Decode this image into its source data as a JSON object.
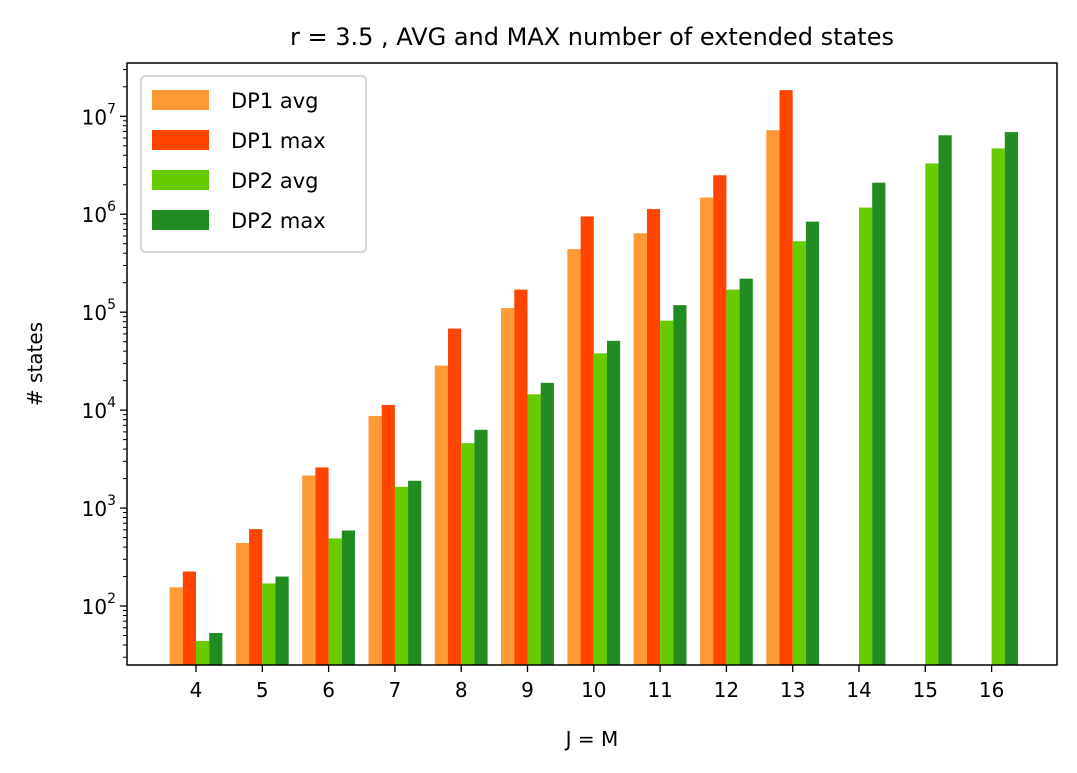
{
  "chart_data": {
    "type": "bar",
    "title": "r = 3.5 , AVG and MAX number of extended states",
    "xlabel": "J = M",
    "ylabel": "# states",
    "yscale": "log",
    "ylim": [
      25,
      35000000
    ],
    "categories": [
      "4",
      "5",
      "6",
      "7",
      "8",
      "9",
      "10",
      "11",
      "12",
      "13",
      "14",
      "15",
      "16"
    ],
    "y_ticks": [
      {
        "base": "10",
        "exp": "2",
        "value": 100
      },
      {
        "base": "10",
        "exp": "3",
        "value": 1000
      },
      {
        "base": "10",
        "exp": "4",
        "value": 10000
      },
      {
        "base": "10",
        "exp": "5",
        "value": 100000
      },
      {
        "base": "10",
        "exp": "6",
        "value": 1000000
      },
      {
        "base": "10",
        "exp": "7",
        "value": 10000000
      }
    ],
    "series": [
      {
        "name": "DP1 avg",
        "color": "#ff9933",
        "values": [
          155,
          440,
          2150,
          8700,
          28500,
          110000,
          440000,
          640000,
          1480000,
          7200000,
          null,
          null,
          null
        ]
      },
      {
        "name": "DP1 max",
        "color": "#ff4500",
        "values": [
          225,
          610,
          2600,
          11300,
          68000,
          170000,
          950000,
          1130000,
          2500000,
          18500000,
          null,
          null,
          null
        ]
      },
      {
        "name": "DP2 avg",
        "color": "#66cc00",
        "values": [
          44,
          170,
          490,
          1650,
          4600,
          14500,
          38000,
          82000,
          170000,
          530000,
          1170000,
          3300000,
          4700000
        ]
      },
      {
        "name": "DP2 max",
        "color": "#228b22",
        "values": [
          53,
          200,
          590,
          1900,
          6300,
          19000,
          51000,
          118000,
          220000,
          840000,
          2100000,
          6400000,
          6900000
        ]
      }
    ],
    "legend_position": "top-left",
    "grid": false
  }
}
